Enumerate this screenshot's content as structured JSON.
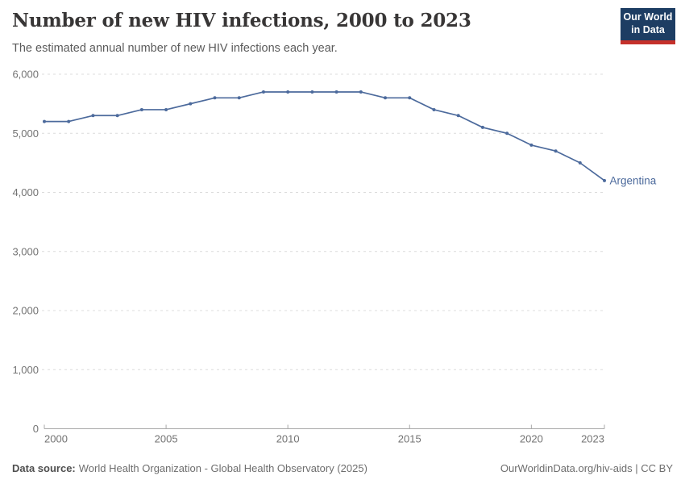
{
  "header": {
    "title": "Number of new HIV infections, 2000 to 2023",
    "subtitle": "The estimated annual number of new HIV infections each year.",
    "logo": {
      "line1": "Our World",
      "line2": "in Data"
    }
  },
  "chart_data": {
    "type": "line",
    "title": "Number of new HIV infections, 2000 to 2023",
    "xlabel": "",
    "ylabel": "",
    "xlim": [
      2000,
      2023
    ],
    "ylim": [
      0,
      6000
    ],
    "grid": "horizontal-dashed",
    "legend_position": "end-of-line",
    "xticks": [
      2000,
      2005,
      2010,
      2015,
      2020,
      2023
    ],
    "yticks": [
      0,
      1000,
      2000,
      3000,
      4000,
      5000,
      6000
    ],
    "colors": {
      "grid": "#dcdcdc",
      "axis": "#a8a8a8",
      "tick_text": "#737373"
    },
    "series": [
      {
        "name": "Argentina",
        "color": "#4c6a9c",
        "x": [
          2000,
          2001,
          2002,
          2003,
          2004,
          2005,
          2006,
          2007,
          2008,
          2009,
          2010,
          2011,
          2012,
          2013,
          2014,
          2015,
          2016,
          2017,
          2018,
          2019,
          2020,
          2021,
          2022,
          2023
        ],
        "values": [
          5200,
          5200,
          5300,
          5300,
          5400,
          5400,
          5500,
          5600,
          5600,
          5700,
          5700,
          5700,
          5700,
          5700,
          5600,
          5600,
          5400,
          5300,
          5100,
          5000,
          4800,
          4700,
          4500,
          4200
        ]
      }
    ]
  },
  "footer": {
    "datasource_label": "Data source:",
    "datasource_text": "World Health Organization - Global Health Observatory (2025)",
    "link_text": "OurWorldinData.org/hiv-aids | CC BY"
  }
}
